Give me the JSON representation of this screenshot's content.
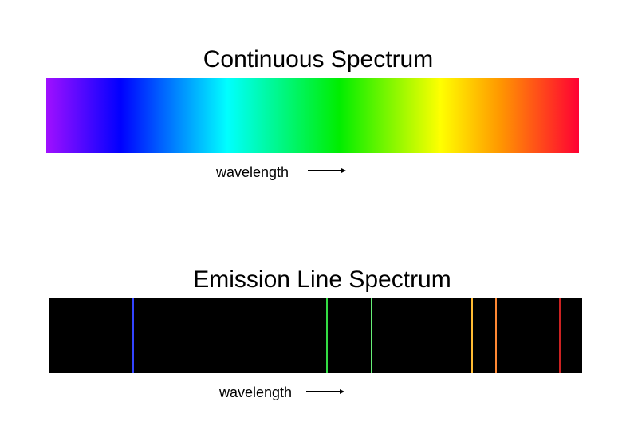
{
  "continuous": {
    "title": "Continuous Spectrum",
    "axis_label": "wavelength",
    "gradient_stops": [
      {
        "color": "#a010ff",
        "pos": 0
      },
      {
        "color": "#0000ff",
        "pos": 14
      },
      {
        "color": "#00ffff",
        "pos": 34
      },
      {
        "color": "#00ee00",
        "pos": 55
      },
      {
        "color": "#ffff00",
        "pos": 74
      },
      {
        "color": "#ff9900",
        "pos": 85
      },
      {
        "color": "#ff0033",
        "pos": 100
      }
    ]
  },
  "emission": {
    "title": "Emission Line Spectrum",
    "axis_label": "wavelength",
    "background": "#000000",
    "lines": [
      {
        "name": "blue-line",
        "color": "#3344ff",
        "pos": 15.9
      },
      {
        "name": "green-line-1",
        "color": "#33dd44",
        "pos": 52.1
      },
      {
        "name": "green-line-2",
        "color": "#66ee77",
        "pos": 60.6
      },
      {
        "name": "yellow-line",
        "color": "#ffbb33",
        "pos": 79.4
      },
      {
        "name": "orange-line",
        "color": "#ff8833",
        "pos": 83.9
      },
      {
        "name": "red-line",
        "color": "#cc2222",
        "pos": 95.8
      }
    ]
  }
}
